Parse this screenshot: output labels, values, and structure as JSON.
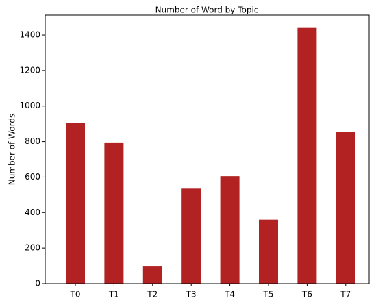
{
  "chart_data": {
    "type": "bar",
    "title": "Number of Word by  Topic",
    "ylabel": "Number of Words",
    "categories": [
      "T0",
      "T1",
      "T2",
      "T3",
      "T4",
      "T5",
      "T6",
      "T7"
    ],
    "values": [
      905,
      795,
      100,
      535,
      605,
      360,
      1440,
      855
    ],
    "color": "#b22222",
    "ylim": [
      0,
      1512
    ],
    "yticks": [
      0,
      200,
      400,
      600,
      800,
      1000,
      1200,
      1400
    ],
    "grid": false
  }
}
